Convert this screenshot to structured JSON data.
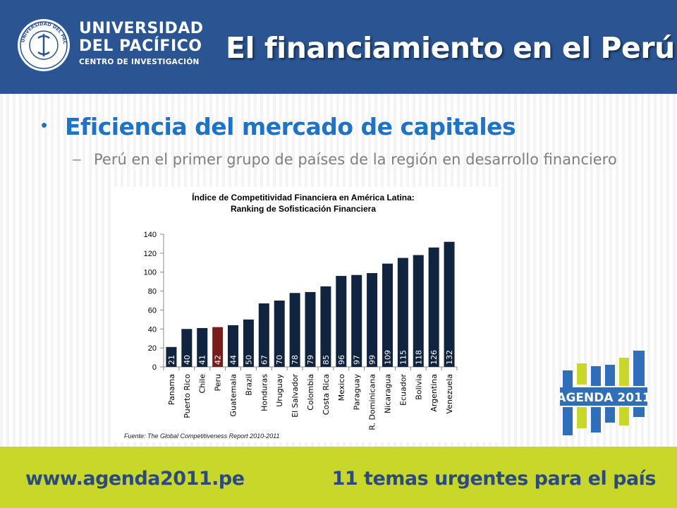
{
  "header": {
    "logo": {
      "line1": "UNIVERSIDAD",
      "line2": "DEL PACÍFICO",
      "line3": "CENTRO DE INVESTIGACIÓN",
      "seal_text": "UNIVERSIDAD DEL PACÍFICO · LIMA · PERÚ"
    },
    "title": "El financiamiento en el Perú"
  },
  "content": {
    "bullet": "Eficiencia del mercado de capitales",
    "sub_bullet": "Perú en el primer grupo de países de la región en desarrollo financiero"
  },
  "chart_data": {
    "type": "bar",
    "title": "Índice de Competitividad Financiera en América Latina:",
    "subtitle": "Ranking de Sofisticación Financiera",
    "categories": [
      "Panama",
      "Puerto Rico",
      "Chile",
      "Peru",
      "Guatemala",
      "Brazil",
      "Honduras",
      "Uruguay",
      "El Salvador",
      "Colombia",
      "Costa Rica",
      "Mexico",
      "Paraguay",
      "R. Dominicana",
      "Nicaragua",
      "Ecuador",
      "Bolivia",
      "Argentina",
      "Venezuela"
    ],
    "values": [
      21,
      40,
      41,
      42,
      44,
      50,
      67,
      70,
      78,
      79,
      85,
      96,
      97,
      99,
      109,
      115,
      118,
      126,
      132
    ],
    "highlight": "Peru",
    "bar_color": "#10233f",
    "highlight_color": "#7a1c1c",
    "ylim": [
      0,
      140
    ],
    "yticks": [
      0,
      20,
      40,
      60,
      80,
      100,
      120,
      140
    ],
    "grid": false,
    "source": "Fuente: The Global Competitiveness Report 2010-2011"
  },
  "footer": {
    "left": "www.agenda2011.pe",
    "right": "11 temas urgentes para el país",
    "agenda_logo": "AGENDA 2011"
  },
  "colors": {
    "header_bg": "#2a5592",
    "footer_bg": "#c9d72b",
    "accent": "#1f73c4"
  }
}
